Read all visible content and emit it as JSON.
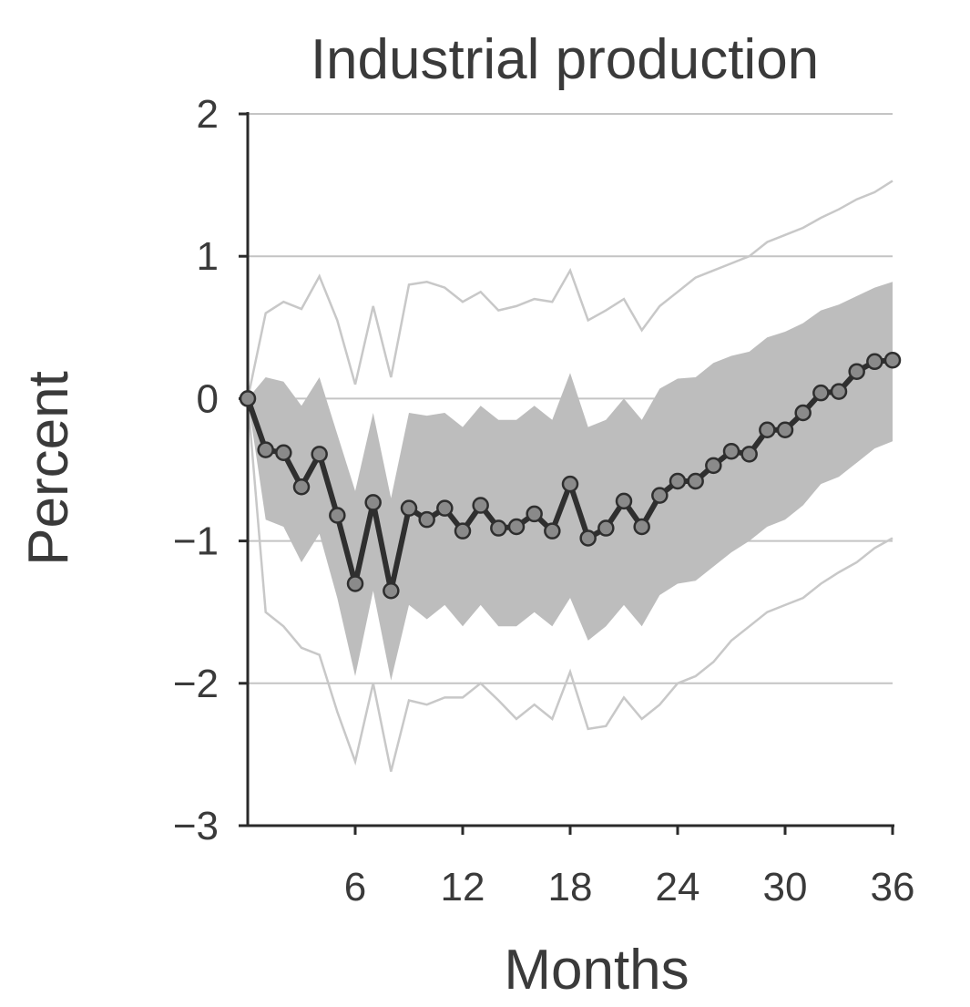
{
  "chart_data": {
    "type": "line",
    "title": "Industrial production",
    "xlabel": "Months",
    "ylabel": "Percent",
    "xlim": [
      0,
      36
    ],
    "ylim": [
      -3,
      2
    ],
    "x_ticks": [
      6,
      12,
      18,
      24,
      30,
      36
    ],
    "x_tick_labels": [
      "6",
      "12",
      "18",
      "24",
      "30",
      "36"
    ],
    "y_ticks": [
      2,
      1,
      0,
      -1,
      -2,
      -3
    ],
    "y_tick_labels": [
      "2",
      "1",
      "0",
      "−1",
      "−2",
      "−3"
    ],
    "grid": "horizontal",
    "x": [
      0,
      1,
      2,
      3,
      4,
      5,
      6,
      7,
      8,
      9,
      10,
      11,
      12,
      13,
      14,
      15,
      16,
      17,
      18,
      19,
      20,
      21,
      22,
      23,
      24,
      25,
      26,
      27,
      28,
      29,
      30,
      31,
      32,
      33,
      34,
      35,
      36
    ],
    "series": [
      {
        "role": "point-estimate",
        "values": [
          0.0,
          -0.36,
          -0.38,
          -0.62,
          -0.39,
          -0.82,
          -1.3,
          -0.73,
          -1.35,
          -0.77,
          -0.85,
          -0.77,
          -0.93,
          -0.75,
          -0.91,
          -0.9,
          -0.81,
          -0.93,
          -0.6,
          -0.98,
          -0.91,
          -0.72,
          -0.9,
          -0.68,
          -0.58,
          -0.58,
          -0.47,
          -0.37,
          -0.39,
          -0.22,
          -0.22,
          -0.1,
          0.04,
          0.05,
          0.19,
          0.26,
          0.27
        ]
      },
      {
        "role": "inner-band-upper",
        "values": [
          0.0,
          0.15,
          0.12,
          -0.05,
          0.15,
          -0.25,
          -0.65,
          -0.1,
          -0.7,
          -0.1,
          -0.12,
          -0.1,
          -0.2,
          -0.05,
          -0.15,
          -0.15,
          -0.05,
          -0.15,
          0.18,
          -0.2,
          -0.15,
          0.0,
          -0.15,
          0.07,
          0.14,
          0.15,
          0.25,
          0.3,
          0.33,
          0.43,
          0.47,
          0.53,
          0.62,
          0.66,
          0.72,
          0.78,
          0.82
        ]
      },
      {
        "role": "inner-band-lower",
        "values": [
          0.0,
          -0.85,
          -0.9,
          -1.15,
          -0.95,
          -1.4,
          -1.95,
          -1.35,
          -1.98,
          -1.45,
          -1.55,
          -1.45,
          -1.6,
          -1.45,
          -1.6,
          -1.6,
          -1.5,
          -1.6,
          -1.4,
          -1.7,
          -1.6,
          -1.45,
          -1.6,
          -1.38,
          -1.3,
          -1.28,
          -1.18,
          -1.08,
          -1.0,
          -0.9,
          -0.85,
          -0.75,
          -0.6,
          -0.55,
          -0.45,
          -0.35,
          -0.3
        ]
      },
      {
        "role": "outer-band-upper",
        "values": [
          0.0,
          0.6,
          0.68,
          0.63,
          0.86,
          0.55,
          0.1,
          0.65,
          0.15,
          0.8,
          0.82,
          0.78,
          0.68,
          0.75,
          0.62,
          0.65,
          0.7,
          0.68,
          0.9,
          0.55,
          0.62,
          0.7,
          0.48,
          0.65,
          0.75,
          0.85,
          0.9,
          0.95,
          1.0,
          1.1,
          1.15,
          1.2,
          1.27,
          1.33,
          1.4,
          1.45,
          1.53
        ]
      },
      {
        "role": "outer-band-lower",
        "values": [
          0.0,
          -1.5,
          -1.6,
          -1.75,
          -1.8,
          -2.2,
          -2.55,
          -2.0,
          -2.62,
          -2.12,
          -2.15,
          -2.1,
          -2.1,
          -2.0,
          -2.12,
          -2.25,
          -2.15,
          -2.25,
          -1.92,
          -2.32,
          -2.3,
          -2.1,
          -2.25,
          -2.15,
          -2.0,
          -1.95,
          -1.85,
          -1.7,
          -1.6,
          -1.5,
          -1.45,
          -1.4,
          -1.3,
          -1.22,
          -1.15,
          -1.05,
          -0.98
        ]
      }
    ],
    "colors": {
      "point_estimate_line": "#2f2f2f",
      "inner_band_fill": "#bdbdbd",
      "outer_band_line": "#c8c8c8",
      "grid": "#c4c4c4",
      "axis": "#2a2a2a",
      "text": "#3a3a3a"
    }
  }
}
